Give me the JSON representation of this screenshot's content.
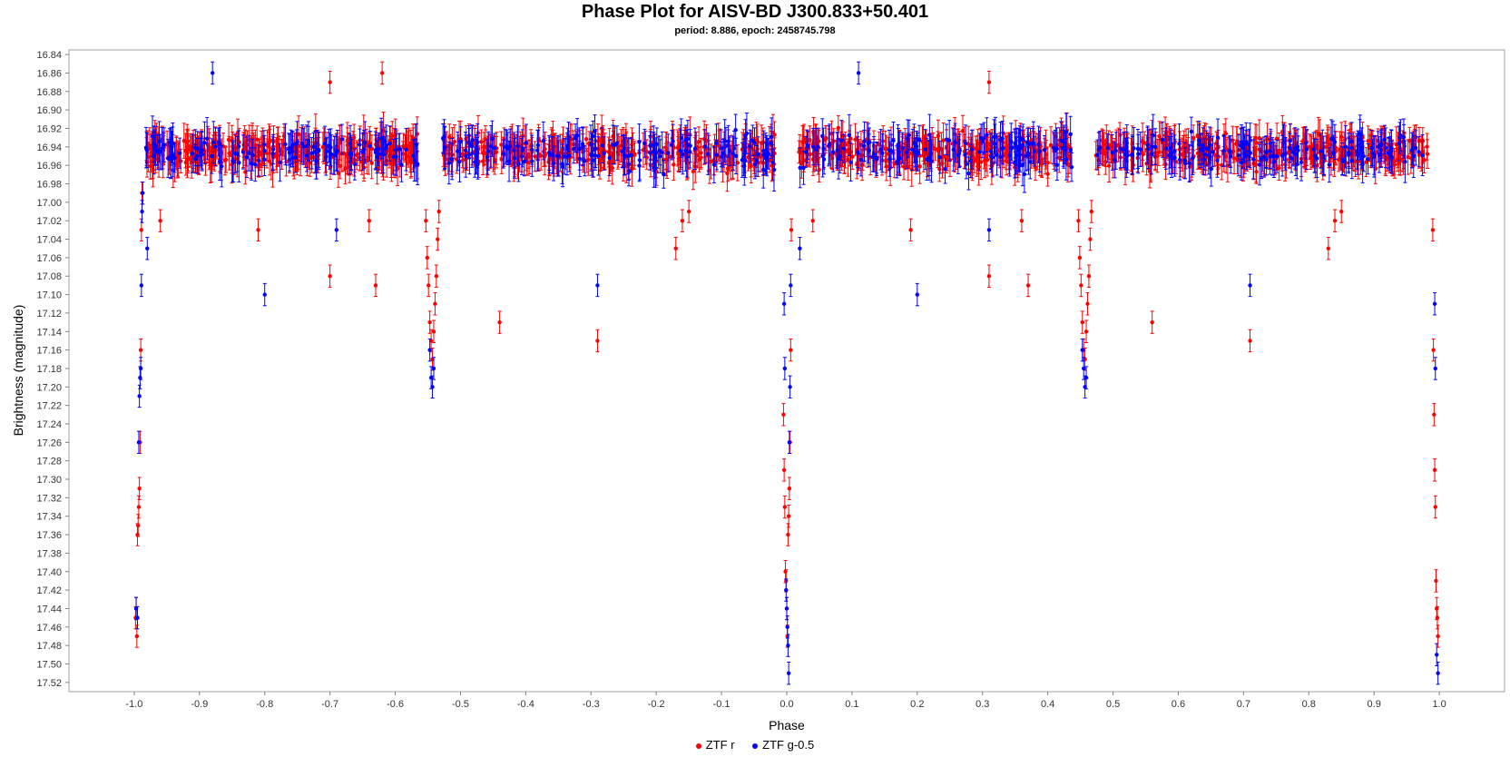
{
  "chart_data": {
    "type": "scatter",
    "title": "Phase Plot for AISV-BD J300.833+50.401",
    "subtitle": "period: 8.886, epoch: 2458745.798",
    "xlabel": "Phase",
    "ylabel": "Brightness (magnitude)",
    "xlim": [
      -1.1,
      1.1
    ],
    "ylim": [
      17.53,
      16.835
    ],
    "y_inverted": true,
    "grid": false,
    "legend_position": "bottom",
    "x_ticks": [
      "-1.0",
      "-0.9",
      "-0.8",
      "-0.7",
      "-0.6",
      "-0.5",
      "-0.4",
      "-0.3",
      "-0.2",
      "-0.1",
      "0.0",
      "0.1",
      "0.2",
      "0.3",
      "0.4",
      "0.5",
      "0.6",
      "0.7",
      "0.8",
      "0.9",
      "1.0"
    ],
    "y_ticks": [
      "16.84",
      "16.86",
      "16.88",
      "16.90",
      "16.92",
      "16.94",
      "16.96",
      "16.98",
      "17.00",
      "17.02",
      "17.04",
      "17.06",
      "17.08",
      "17.10",
      "17.12",
      "17.14",
      "17.16",
      "17.18",
      "17.20",
      "17.22",
      "17.24",
      "17.26",
      "17.28",
      "17.30",
      "17.32",
      "17.34",
      "17.36",
      "17.38",
      "17.40",
      "17.42",
      "17.44",
      "17.46",
      "17.48",
      "17.50",
      "17.52"
    ],
    "baseline_magnitude": 16.945,
    "series": [
      {
        "name": "ZTF r",
        "color": "#ff0000",
        "eclipse_points": [
          [
            -0.998,
            17.45
          ],
          [
            -0.997,
            17.44
          ],
          [
            -0.996,
            17.47
          ],
          [
            -0.995,
            17.36
          ],
          [
            -0.994,
            17.35
          ],
          [
            -0.993,
            17.33
          ],
          [
            -0.992,
            17.31
          ],
          [
            -0.991,
            17.26
          ],
          [
            -0.99,
            17.16
          ],
          [
            -0.989,
            17.03
          ],
          [
            -0.988,
            16.99
          ],
          [
            -0.005,
            17.23
          ],
          [
            -0.004,
            17.29
          ],
          [
            -0.003,
            17.33
          ],
          [
            -0.002,
            17.4
          ],
          [
            -0.001,
            17.41
          ],
          [
            0.0,
            17.44
          ],
          [
            0.001,
            17.47
          ],
          [
            0.002,
            17.36
          ],
          [
            0.003,
            17.34
          ],
          [
            0.004,
            17.31
          ],
          [
            0.005,
            17.26
          ],
          [
            0.006,
            17.16
          ],
          [
            0.007,
            17.03
          ],
          [
            0.99,
            17.03
          ],
          [
            0.991,
            17.16
          ],
          [
            0.992,
            17.23
          ],
          [
            0.993,
            17.29
          ],
          [
            0.994,
            17.33
          ],
          [
            0.995,
            17.41
          ],
          [
            0.996,
            17.44
          ],
          [
            0.997,
            17.45
          ],
          [
            0.998,
            17.47
          ],
          [
            -0.553,
            17.02
          ],
          [
            -0.551,
            17.06
          ],
          [
            -0.549,
            17.09
          ],
          [
            -0.547,
            17.13
          ],
          [
            -0.545,
            17.15
          ],
          [
            -0.543,
            17.17
          ],
          [
            -0.541,
            17.14
          ],
          [
            -0.539,
            17.11
          ],
          [
            -0.537,
            17.08
          ],
          [
            -0.535,
            17.04
          ],
          [
            -0.533,
            17.01
          ],
          [
            0.447,
            17.02
          ],
          [
            0.449,
            17.06
          ],
          [
            0.451,
            17.09
          ],
          [
            0.453,
            17.13
          ],
          [
            0.455,
            17.16
          ],
          [
            0.457,
            17.17
          ],
          [
            0.459,
            17.14
          ],
          [
            0.461,
            17.11
          ],
          [
            0.463,
            17.08
          ],
          [
            0.465,
            17.04
          ],
          [
            0.467,
            17.01
          ],
          [
            -0.96,
            17.02
          ],
          [
            -0.81,
            17.03
          ],
          [
            -0.7,
            17.08
          ],
          [
            -0.64,
            17.02
          ],
          [
            -0.63,
            17.09
          ],
          [
            -0.44,
            17.13
          ],
          [
            -0.29,
            17.15
          ],
          [
            -0.17,
            17.05
          ],
          [
            -0.16,
            17.02
          ],
          [
            -0.15,
            17.01
          ],
          [
            0.04,
            17.02
          ],
          [
            0.19,
            17.03
          ],
          [
            0.31,
            17.08
          ],
          [
            0.36,
            17.02
          ],
          [
            0.37,
            17.09
          ],
          [
            0.56,
            17.13
          ],
          [
            0.71,
            17.15
          ],
          [
            0.83,
            17.05
          ],
          [
            0.84,
            17.02
          ],
          [
            0.85,
            17.01
          ],
          [
            -0.7,
            16.87
          ],
          [
            0.31,
            16.87
          ],
          [
            -0.62,
            16.86
          ]
        ]
      },
      {
        "name": "ZTF g-0.5",
        "color": "#0000ff",
        "eclipse_points": [
          [
            -0.997,
            17.44
          ],
          [
            -0.995,
            17.45
          ],
          [
            -0.993,
            17.26
          ],
          [
            -0.992,
            17.21
          ],
          [
            -0.991,
            17.19
          ],
          [
            -0.99,
            17.18
          ],
          [
            -0.989,
            17.09
          ],
          [
            -0.988,
            17.01
          ],
          [
            -0.987,
            16.99
          ],
          [
            -0.004,
            17.11
          ],
          [
            -0.003,
            17.18
          ],
          [
            -0.001,
            17.42
          ],
          [
            0.0,
            17.44
          ],
          [
            0.001,
            17.46
          ],
          [
            0.002,
            17.48
          ],
          [
            0.003,
            17.51
          ],
          [
            0.004,
            17.26
          ],
          [
            0.005,
            17.2
          ],
          [
            0.006,
            17.09
          ],
          [
            0.993,
            17.11
          ],
          [
            0.994,
            17.18
          ],
          [
            0.996,
            17.49
          ],
          [
            0.998,
            17.51
          ],
          [
            -0.547,
            17.16
          ],
          [
            -0.545,
            17.19
          ],
          [
            -0.543,
            17.2
          ],
          [
            -0.541,
            17.18
          ],
          [
            0.453,
            17.16
          ],
          [
            0.455,
            17.18
          ],
          [
            0.457,
            17.2
          ],
          [
            0.459,
            17.19
          ],
          [
            -0.98,
            17.05
          ],
          [
            -0.8,
            17.1
          ],
          [
            -0.69,
            17.03
          ],
          [
            -0.29,
            17.09
          ],
          [
            0.02,
            17.05
          ],
          [
            0.2,
            17.1
          ],
          [
            0.31,
            17.03
          ],
          [
            0.71,
            17.09
          ],
          [
            -0.88,
            16.86
          ],
          [
            0.11,
            16.86
          ]
        ]
      }
    ]
  },
  "legend": {
    "items": [
      {
        "label": "ZTF r",
        "color": "#ff0000"
      },
      {
        "label": "ZTF g-0.5",
        "color": "#0000ff"
      }
    ]
  }
}
